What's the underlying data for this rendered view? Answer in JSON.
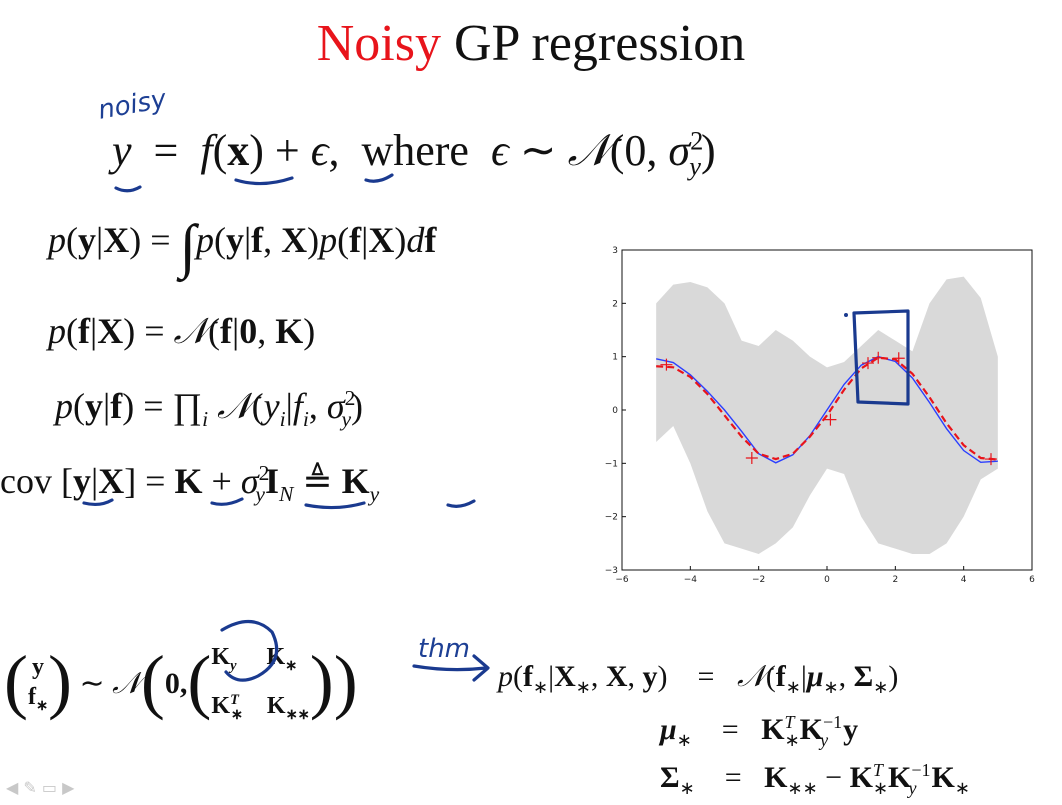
{
  "title": {
    "prefix": "Noisy",
    "rest": " GP regression"
  },
  "annotation": {
    "noisy": "noisy",
    "thm": "thm"
  },
  "equations": {
    "model_where": "where",
    "int_symbol": "∫"
  },
  "bottom": {
    "lhs_top": "y",
    "lhs_bot": "f",
    "tilde": "∼",
    "zero": "0,"
  },
  "colors": {
    "title_accent": "#e8141b",
    "ink": "#1a3a8f",
    "band": "#d9d9d9",
    "true_line": "#2b3fff",
    "mean": "#e8141b"
  },
  "chart_data": {
    "type": "line",
    "xlim": [
      -6,
      6
    ],
    "ylim": [
      -3,
      3
    ],
    "xticks": [
      "−6",
      "−4",
      "−2",
      "0",
      "2",
      "4",
      "6"
    ],
    "yticks": [
      "3",
      "2",
      "1",
      "0",
      "−1",
      "−2",
      "−3"
    ],
    "grid": false,
    "series": [
      {
        "style": "solid-blue",
        "x": [
          -5,
          -4.5,
          -4,
          -3.5,
          -3,
          -2.5,
          -2,
          -1.5,
          -1,
          -0.5,
          0,
          0.5,
          1,
          1.5,
          2,
          2.5,
          3,
          3.5,
          4,
          4.5,
          5
        ],
        "y": [
          0.96,
          0.89,
          0.66,
          0.35,
          0.0,
          -0.4,
          -0.82,
          -0.99,
          -0.84,
          -0.48,
          0.0,
          0.48,
          0.84,
          1.0,
          0.91,
          0.6,
          0.14,
          -0.35,
          -0.76,
          -0.98,
          -0.96
        ]
      },
      {
        "style": "dashed-red",
        "x": [
          -5,
          -4.5,
          -4,
          -3.5,
          -3,
          -2.5,
          -2,
          -1.5,
          -1,
          -0.5,
          0,
          0.5,
          1,
          1.5,
          2,
          2.5,
          3,
          3.5,
          4,
          4.5,
          5
        ],
        "y": [
          0.82,
          0.8,
          0.62,
          0.3,
          -0.1,
          -0.5,
          -0.82,
          -0.92,
          -0.82,
          -0.5,
          -0.1,
          0.38,
          0.78,
          0.98,
          0.95,
          0.68,
          0.24,
          -0.25,
          -0.66,
          -0.9,
          -0.93
        ]
      }
    ],
    "points": {
      "x": [
        -4.7,
        -2.2,
        0.1,
        1.2,
        1.5,
        2.1,
        4.8
      ],
      "y": [
        0.85,
        -0.9,
        -0.18,
        0.88,
        0.98,
        0.97,
        -0.92
      ]
    },
    "band": {
      "x": [
        -5,
        -4.5,
        -4,
        -3.5,
        -3,
        -2.5,
        -2,
        -1.5,
        -1,
        -0.5,
        0,
        0.5,
        1,
        1.5,
        2,
        2.5,
        3,
        3.5,
        4,
        4.5,
        5
      ],
      "upper": [
        2.0,
        2.35,
        2.4,
        2.3,
        2.0,
        1.3,
        1.2,
        1.5,
        1.3,
        1.0,
        0.8,
        0.9,
        1.2,
        1.5,
        1.3,
        1.1,
        2.0,
        2.45,
        2.5,
        2.1,
        1.0
      ],
      "lower": [
        -0.6,
        -0.3,
        -1.0,
        -1.9,
        -2.5,
        -2.6,
        -2.7,
        -2.5,
        -2.2,
        -1.6,
        -1.1,
        -1.2,
        -2.0,
        -2.5,
        -2.6,
        -2.7,
        -2.7,
        -2.5,
        -2.0,
        -1.3,
        -1.1
      ]
    }
  }
}
